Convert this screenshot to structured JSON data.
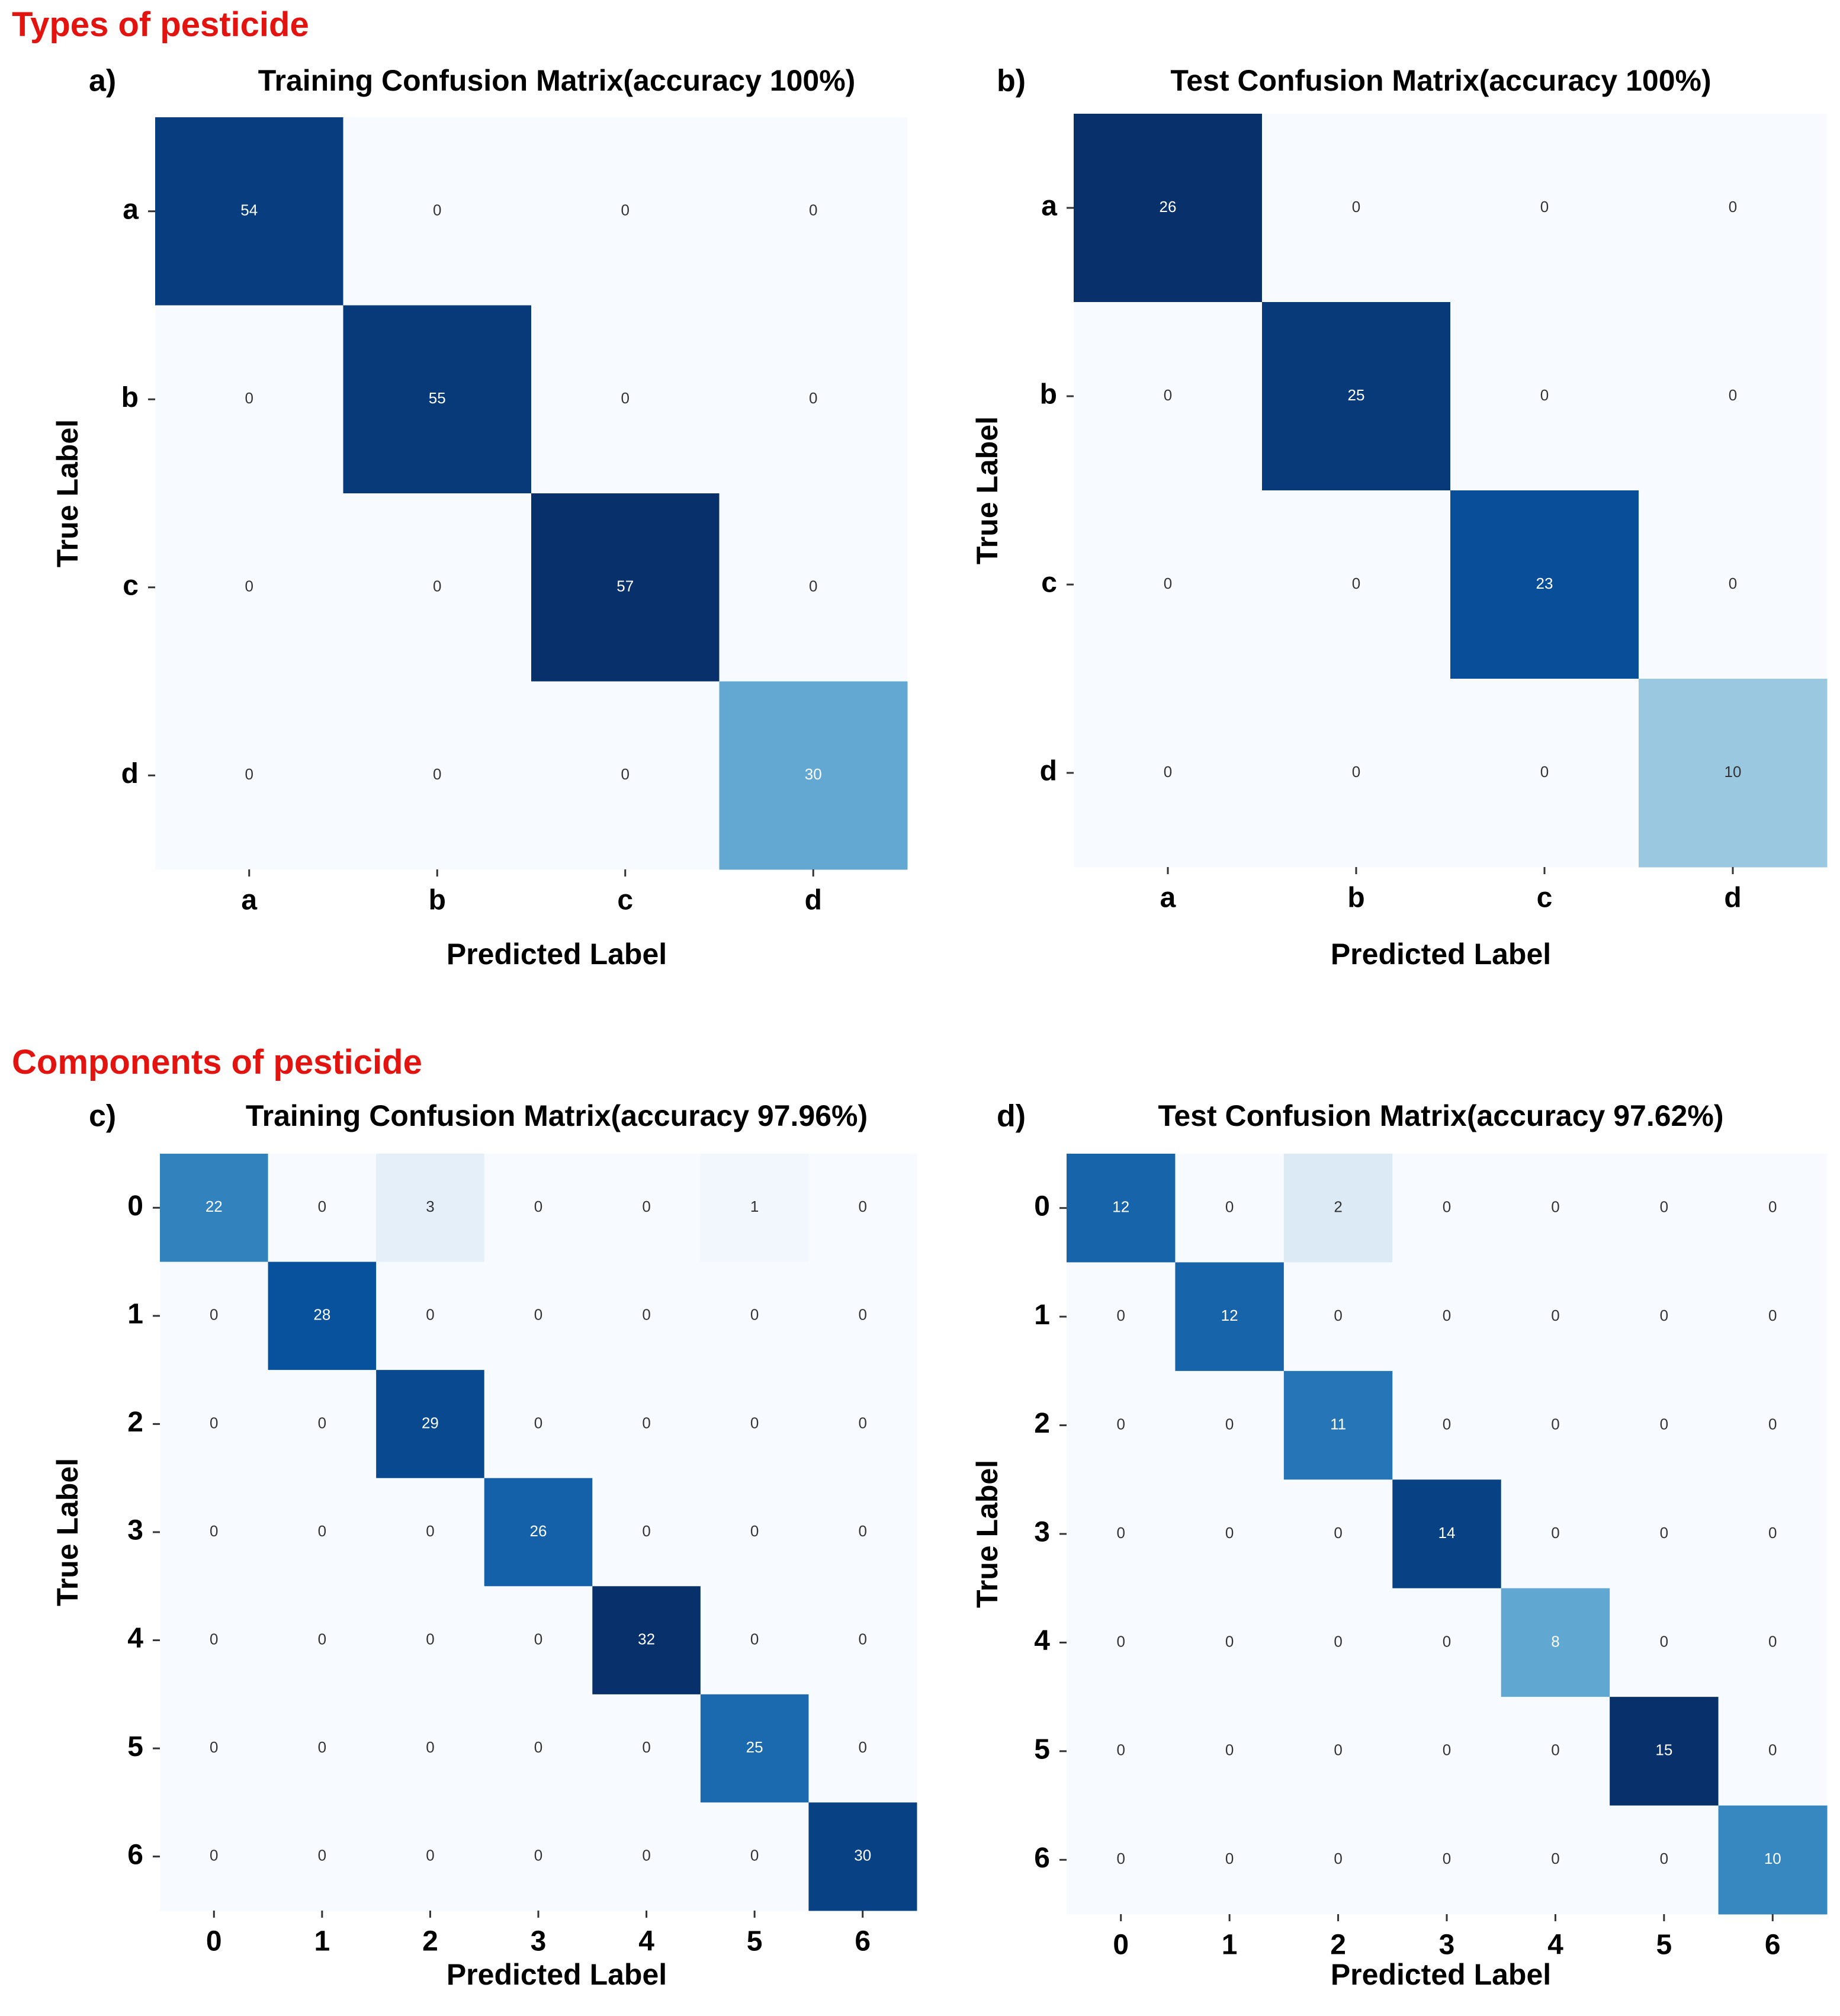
{
  "sections": {
    "types_title": "Types of pesticide",
    "components_title": "Components of pesticide"
  },
  "colors": {
    "section_title": "#e3140f",
    "low": "#f7fbff",
    "high": "#08306b"
  },
  "chart_data": [
    {
      "panel": "a)",
      "type": "heatmap",
      "title": "Training Confusion Matrix(accuracy 100%)",
      "xlabel": "Predicted Label",
      "ylabel": "True Label",
      "categories": [
        "a",
        "b",
        "c",
        "d"
      ],
      "matrix": [
        [
          54,
          0,
          0,
          0
        ],
        [
          0,
          55,
          0,
          0
        ],
        [
          0,
          0,
          57,
          0
        ],
        [
          0,
          0,
          0,
          30
        ]
      ],
      "vmax": 57
    },
    {
      "panel": "b)",
      "type": "heatmap",
      "title": "Test Confusion Matrix(accuracy 100%)",
      "xlabel": "Predicted Label",
      "ylabel": "True Label",
      "categories": [
        "a",
        "b",
        "c",
        "d"
      ],
      "matrix": [
        [
          26,
          0,
          0,
          0
        ],
        [
          0,
          25,
          0,
          0
        ],
        [
          0,
          0,
          23,
          0
        ],
        [
          0,
          0,
          0,
          10
        ]
      ],
      "vmax": 26
    },
    {
      "panel": "c)",
      "type": "heatmap",
      "title": "Training Confusion Matrix(accuracy 97.96%)",
      "xlabel": "Predicted Label",
      "ylabel": "True Label",
      "categories": [
        "0",
        "1",
        "2",
        "3",
        "4",
        "5",
        "6"
      ],
      "matrix": [
        [
          22,
          0,
          3,
          0,
          0,
          1,
          0
        ],
        [
          0,
          28,
          0,
          0,
          0,
          0,
          0
        ],
        [
          0,
          0,
          29,
          0,
          0,
          0,
          0
        ],
        [
          0,
          0,
          0,
          26,
          0,
          0,
          0
        ],
        [
          0,
          0,
          0,
          0,
          32,
          0,
          0
        ],
        [
          0,
          0,
          0,
          0,
          0,
          25,
          0
        ],
        [
          0,
          0,
          0,
          0,
          0,
          0,
          30
        ]
      ],
      "vmax": 32
    },
    {
      "panel": "d)",
      "type": "heatmap",
      "title": "Test Confusion Matrix(accuracy 97.62%)",
      "xlabel": "Predicted Label",
      "ylabel": "True Label",
      "categories": [
        "0",
        "1",
        "2",
        "3",
        "4",
        "5",
        "6"
      ],
      "matrix": [
        [
          12,
          0,
          2,
          0,
          0,
          0,
          0
        ],
        [
          0,
          12,
          0,
          0,
          0,
          0,
          0
        ],
        [
          0,
          0,
          11,
          0,
          0,
          0,
          0
        ],
        [
          0,
          0,
          0,
          14,
          0,
          0,
          0
        ],
        [
          0,
          0,
          0,
          0,
          8,
          0,
          0
        ],
        [
          0,
          0,
          0,
          0,
          0,
          15,
          0
        ],
        [
          0,
          0,
          0,
          0,
          0,
          0,
          10
        ]
      ],
      "vmax": 15
    }
  ]
}
